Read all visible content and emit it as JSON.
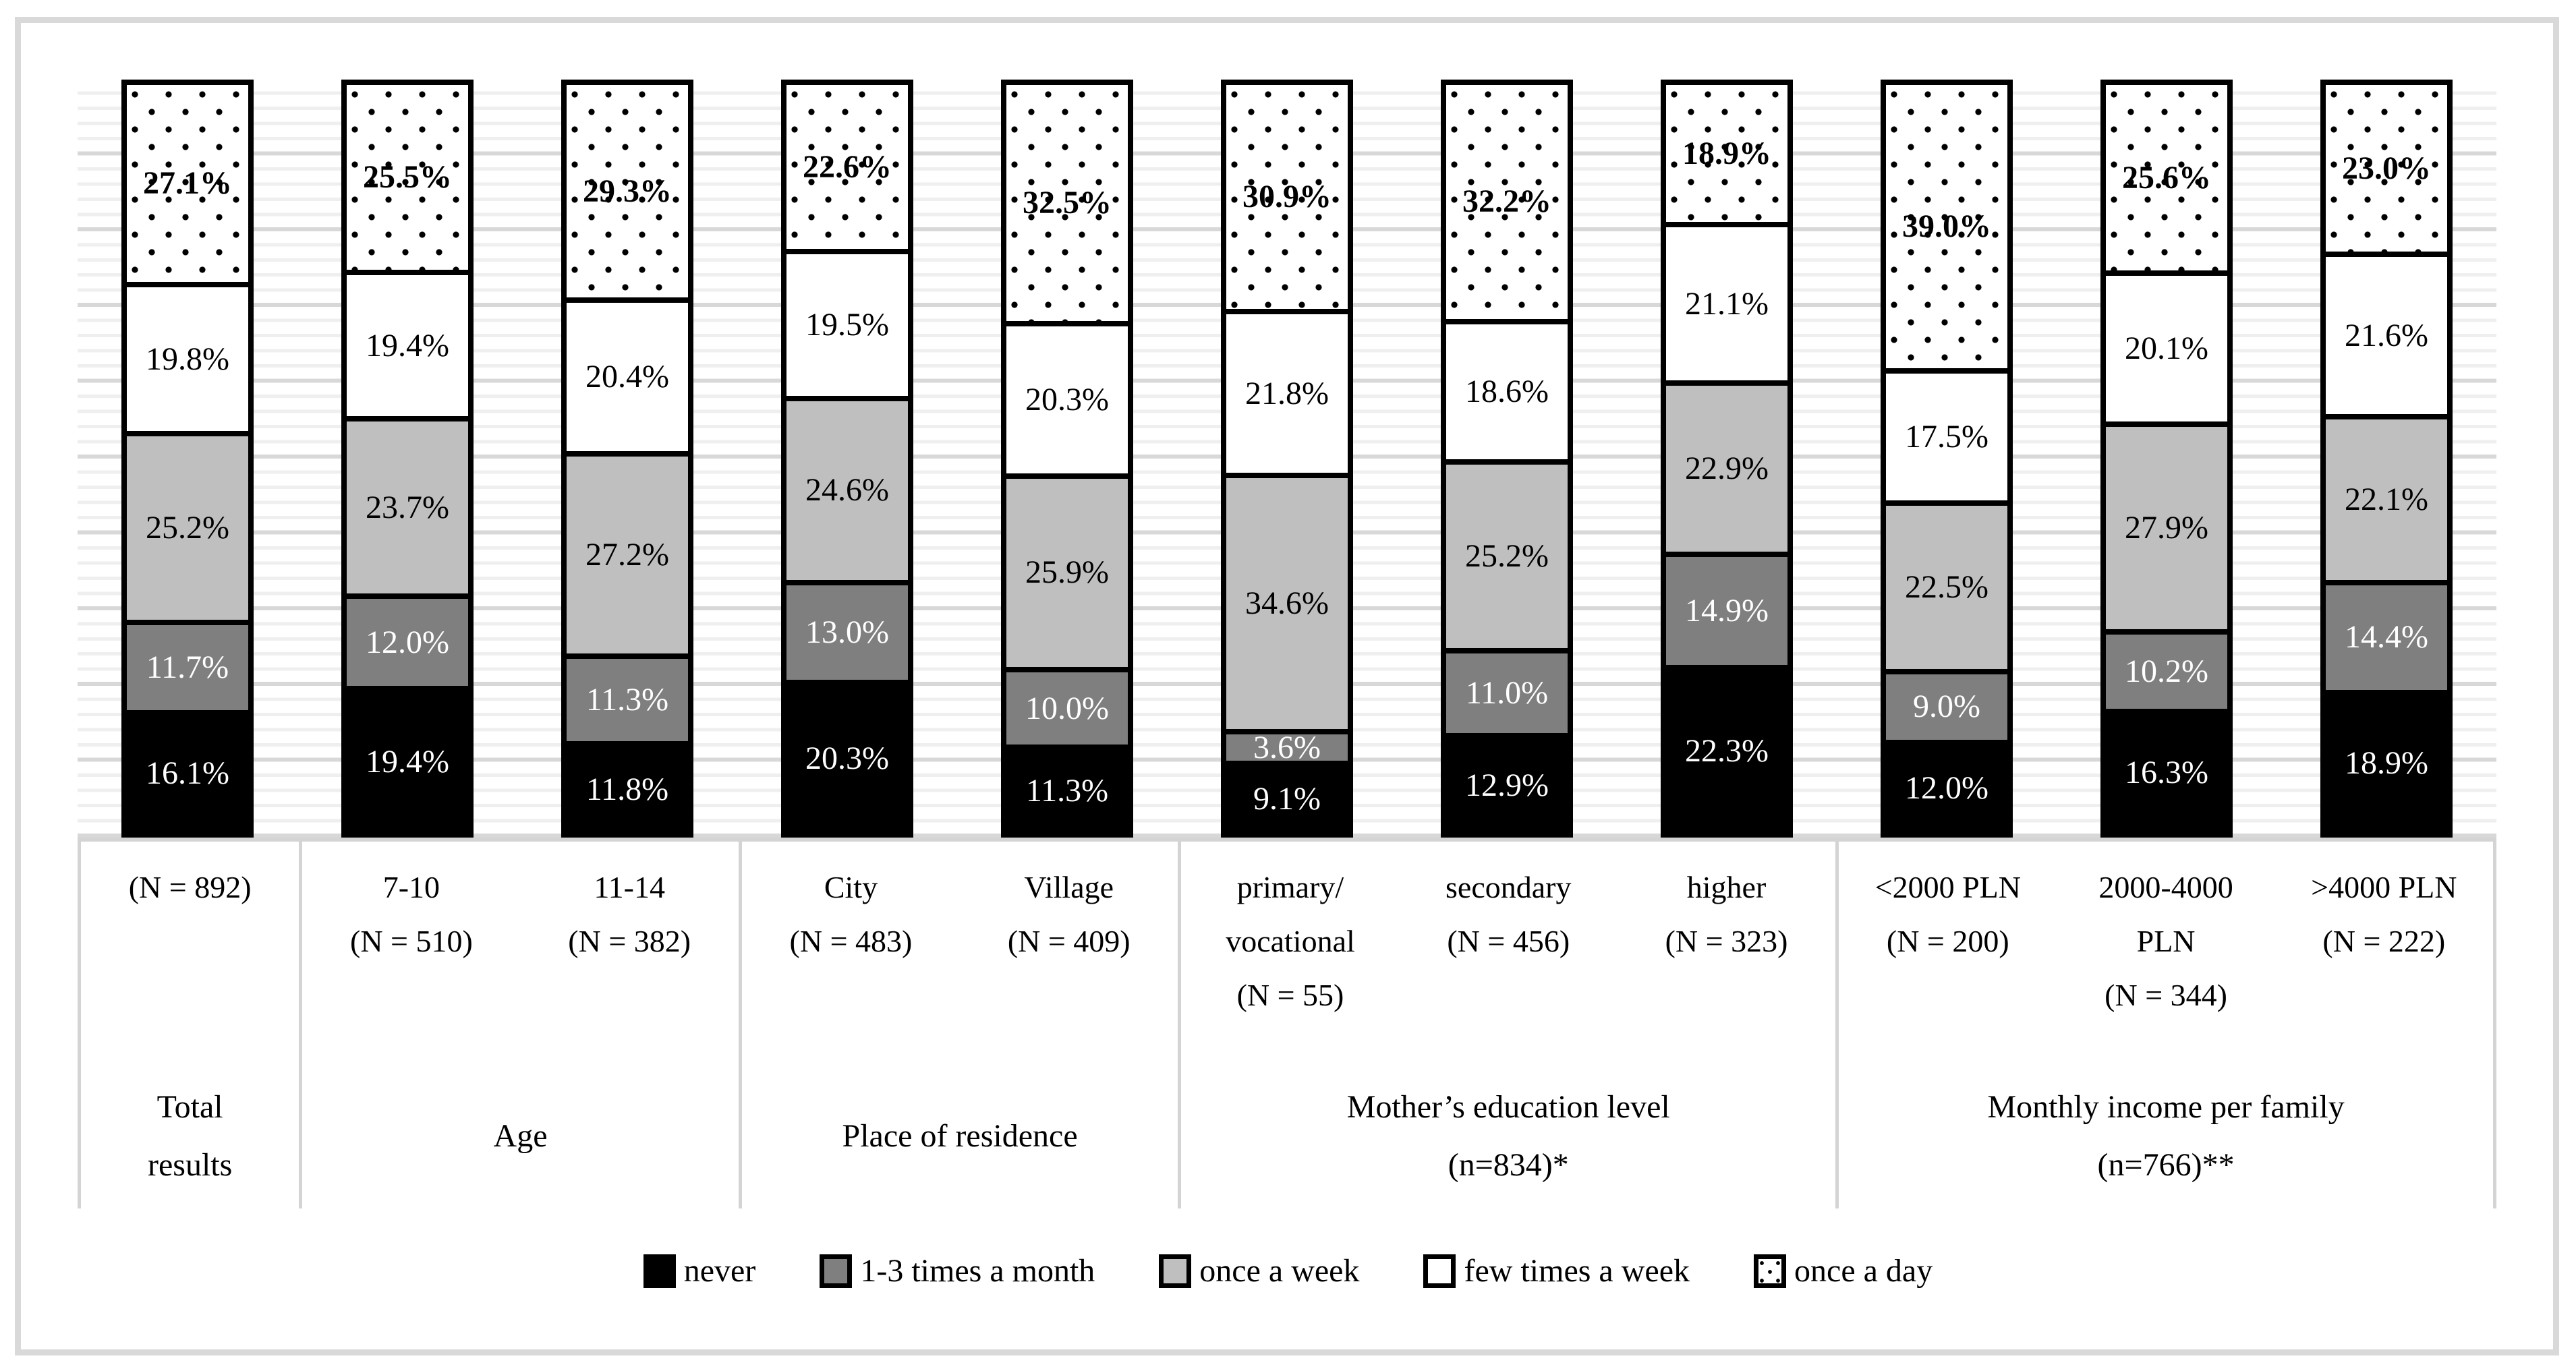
{
  "chart_data": {
    "type": "bar",
    "subtype": "stacked-percentage-column",
    "title": "",
    "ylim": [
      0,
      100
    ],
    "grid": {
      "minor_step_pct": 2,
      "major_step_pct": 10
    },
    "legend_position": "bottom",
    "series_keys_bottom_to_top": [
      "never",
      "m13",
      "week",
      "few",
      "day"
    ],
    "legend": {
      "items": [
        {
          "key": "never",
          "label": "never",
          "color": "#000000"
        },
        {
          "key": "m13",
          "label": "1-3 times a month",
          "color": "#7f7f7f"
        },
        {
          "key": "week",
          "label": "once a week",
          "color": "#bfbfbf"
        },
        {
          "key": "few",
          "label": "few times a week",
          "color": "#ffffff"
        },
        {
          "key": "day",
          "label": "once a day",
          "color": "#ffffff",
          "pattern": "black-dots"
        }
      ]
    },
    "groups": [
      {
        "name": "Total results",
        "name_lines": [
          "Total",
          "results"
        ],
        "bars": [
          {
            "axis_lines": [
              "(N = 892)"
            ],
            "values": {
              "never": 16.1,
              "m13": 11.7,
              "week": 25.2,
              "few": 19.8,
              "day": 27.1
            }
          }
        ]
      },
      {
        "name": "Age",
        "name_lines": [
          "Age"
        ],
        "bars": [
          {
            "axis_lines": [
              "7-10",
              "(N = 510)"
            ],
            "values": {
              "never": 19.4,
              "m13": 12.0,
              "week": 23.7,
              "few": 19.4,
              "day": 25.5
            }
          },
          {
            "axis_lines": [
              "11-14",
              "(N = 382)"
            ],
            "values": {
              "never": 11.8,
              "m13": 11.3,
              "week": 27.2,
              "few": 20.4,
              "day": 29.3
            }
          }
        ]
      },
      {
        "name": "Place of residence",
        "name_lines": [
          "Place of residence"
        ],
        "bars": [
          {
            "axis_lines": [
              "City",
              "(N = 483)"
            ],
            "values": {
              "never": 20.3,
              "m13": 13.0,
              "week": 24.6,
              "few": 19.5,
              "day": 22.6
            }
          },
          {
            "axis_lines": [
              "Village",
              "(N = 409)"
            ],
            "values": {
              "never": 11.3,
              "m13": 10.0,
              "week": 25.9,
              "few": 20.3,
              "day": 32.5
            }
          }
        ]
      },
      {
        "name": "Mother’s education level (n=834)*",
        "name_lines": [
          "Mother’s education level",
          "(n=834)*"
        ],
        "bars": [
          {
            "axis_lines": [
              "primary/",
              "vocational",
              "(N = 55)"
            ],
            "values": {
              "never": 9.1,
              "m13": 3.6,
              "week": 34.6,
              "few": 21.8,
              "day": 30.9
            }
          },
          {
            "axis_lines": [
              "secondary",
              "(N = 456)"
            ],
            "values": {
              "never": 12.9,
              "m13": 11.0,
              "week": 25.2,
              "few": 18.6,
              "day": 32.2
            }
          },
          {
            "axis_lines": [
              "higher",
              "(N = 323)"
            ],
            "values": {
              "never": 22.3,
              "m13": 14.9,
              "week": 22.9,
              "few": 21.1,
              "day": 18.9
            }
          }
        ]
      },
      {
        "name": "Monthly income per family (n=766)**",
        "name_lines": [
          "Monthly income per family",
          "(n=766)**"
        ],
        "bars": [
          {
            "axis_lines": [
              "<2000 PLN",
              "(N = 200)"
            ],
            "values": {
              "never": 12.0,
              "m13": 9.0,
              "week": 22.5,
              "few": 17.5,
              "day": 39.0
            }
          },
          {
            "axis_lines": [
              "2000-4000",
              "PLN",
              "(N = 344)"
            ],
            "values": {
              "never": 16.3,
              "m13": 10.2,
              "week": 27.9,
              "few": 20.1,
              "day": 25.6
            }
          },
          {
            "axis_lines": [
              ">4000 PLN",
              "(N = 222)"
            ],
            "values": {
              "never": 18.9,
              "m13": 14.4,
              "week": 22.1,
              "few": 21.6,
              "day": 23.0
            }
          }
        ]
      }
    ]
  },
  "colors": {
    "frame_border": "#d9d9d9",
    "axis_line": "#d4d4d4",
    "grid_major": "#d8d8d8",
    "grid_minor": "#efefef",
    "never": "#000000",
    "one_three_month": "#7f7f7f",
    "once_week": "#bfbfbf",
    "few_week": "#ffffff"
  }
}
